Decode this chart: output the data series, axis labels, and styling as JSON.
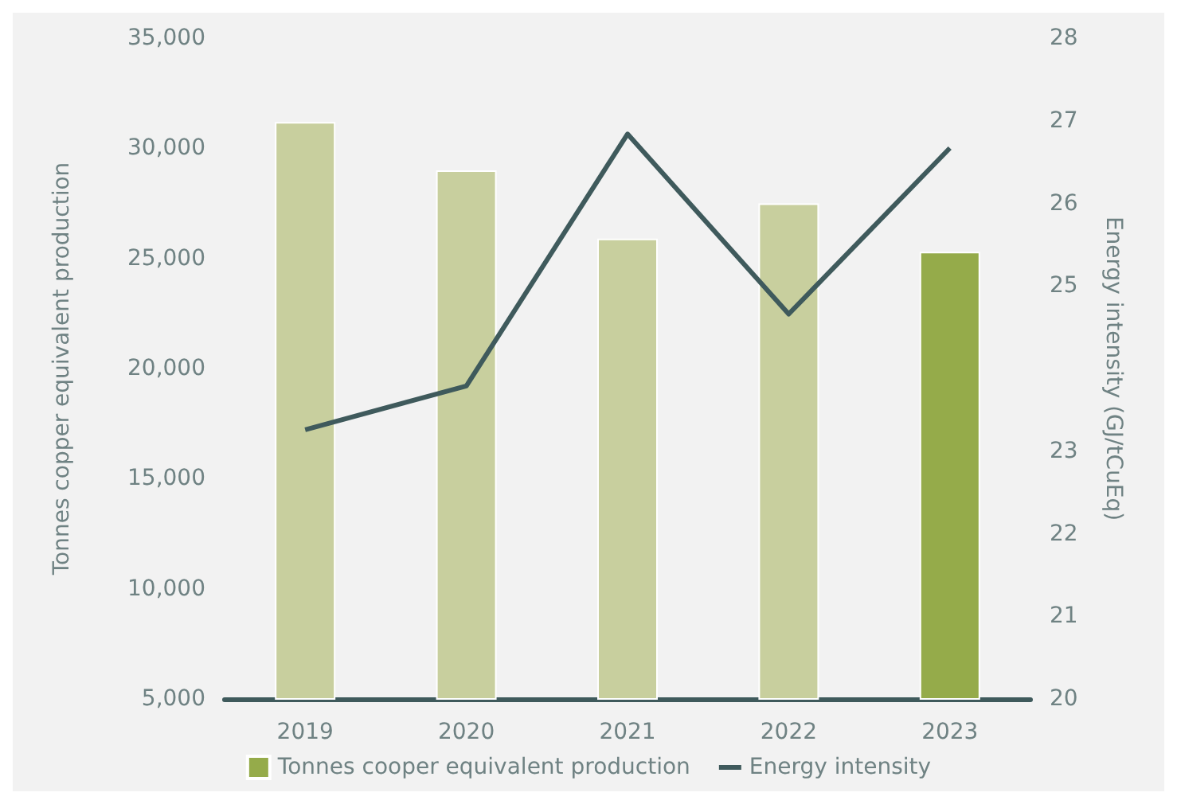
{
  "chart_data": {
    "type": "bar",
    "ylabel": "Tonnes copper equivalent production",
    "y2label": "Energy intensity (GJ/tCuEq)",
    "categories": [
      "2019",
      "2020",
      "2021",
      "2022",
      "2023"
    ],
    "series": [
      {
        "name": "Tonnes cooper equivalent production",
        "color": "#95ab4a",
        "colors": [
          "#c8cf9e",
          "#c8cf9e",
          "#c8cf9e",
          "#c8cf9e",
          "#95ab4a"
        ],
        "values": [
          31200,
          29000,
          25900,
          27500,
          25300
        ]
      },
      {
        "name": "Energy intensity",
        "type": "line",
        "axis": "y2",
        "color": "#3f5a5c",
        "values": [
          23.26,
          23.79,
          26.84,
          24.66,
          26.67
        ]
      }
    ],
    "ylim": [
      5000,
      35000
    ],
    "yticks": [
      {
        "value": 5000,
        "label": "5,000"
      },
      {
        "value": 10000,
        "label": "10,000"
      },
      {
        "value": 15000,
        "label": "15,000"
      },
      {
        "value": 20000,
        "label": "20,000"
      },
      {
        "value": 25000,
        "label": "25,000"
      },
      {
        "value": 30000,
        "label": "30,000"
      },
      {
        "value": 35000,
        "label": "35,000"
      }
    ],
    "y2lim": [
      20,
      28
    ],
    "y2ticks": [
      20,
      21,
      22,
      23,
      25,
      26,
      27,
      28
    ],
    "grid": false,
    "legend": "bottom",
    "marker": "none",
    "line_style": "solid"
  }
}
